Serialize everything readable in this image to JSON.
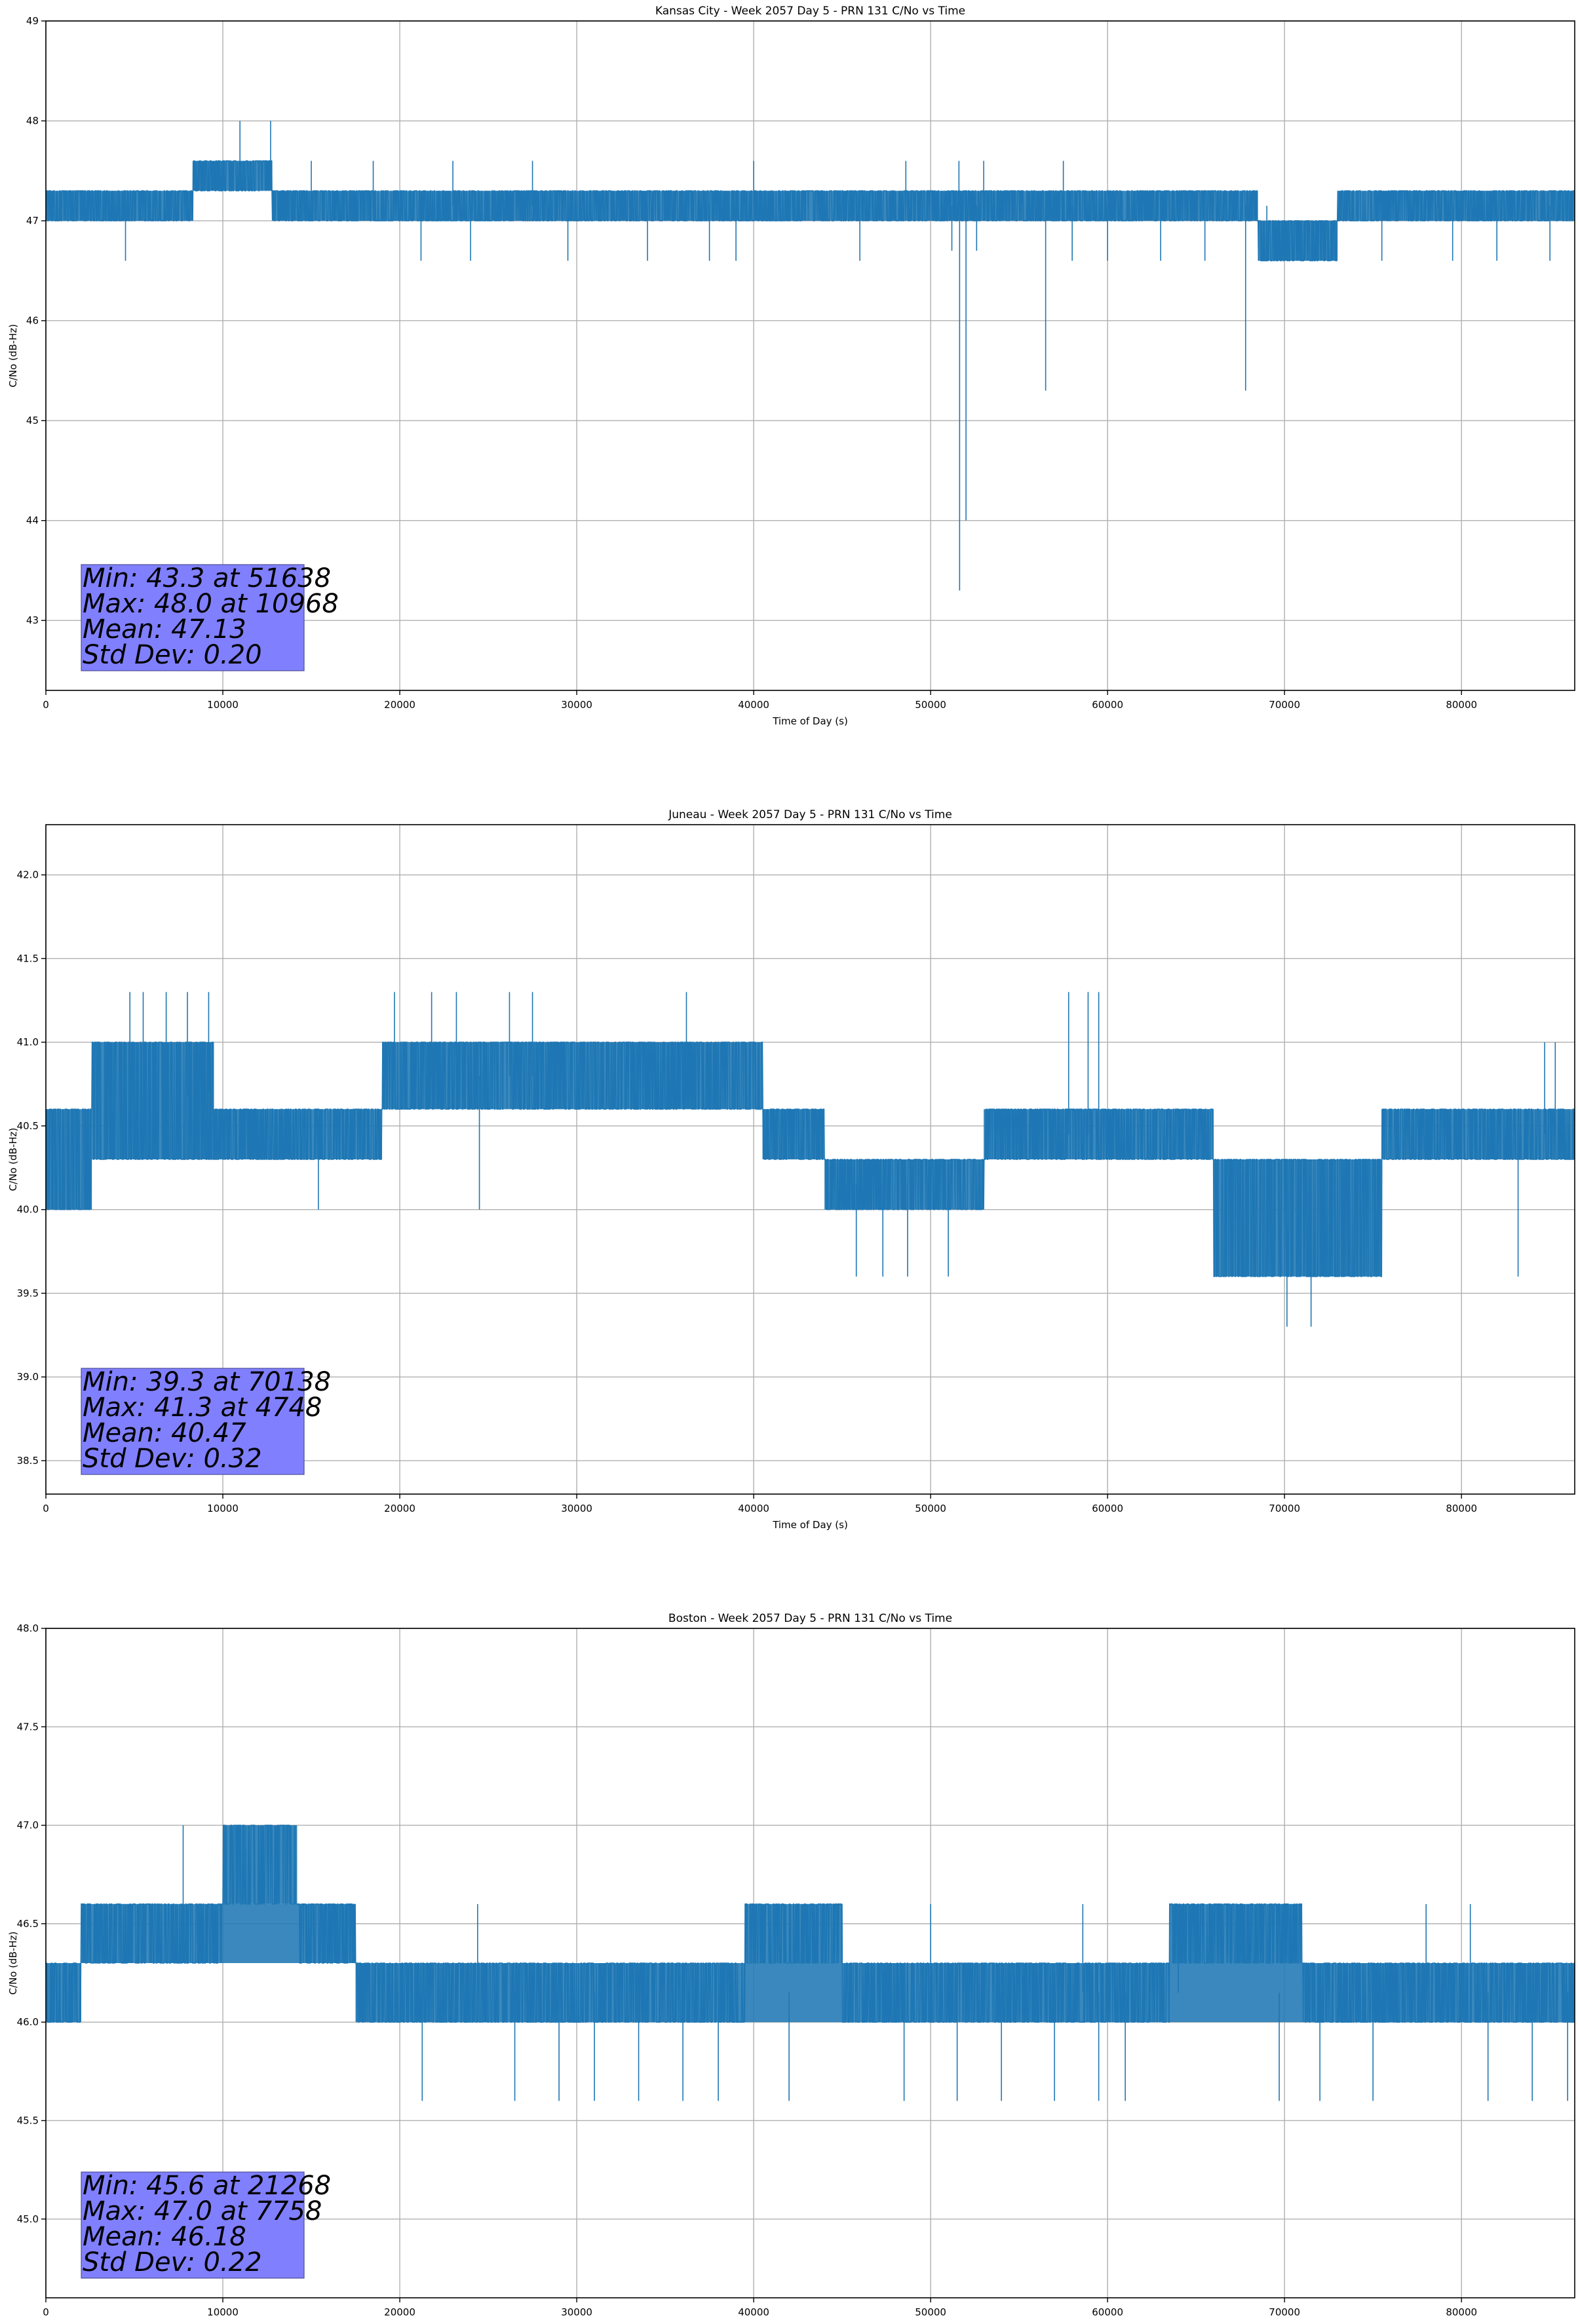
{
  "chart_data": [
    {
      "type": "line",
      "title": "Kansas City - Week 2057 Day 5 - PRN 131 C/No vs Time",
      "xlabel": "Time of Day (s)",
      "ylabel": "C/No (dB-Hz)",
      "xlim": [
        0,
        86400
      ],
      "ylim": [
        42.3,
        49.0
      ],
      "xticks": [
        0,
        10000,
        20000,
        30000,
        40000,
        50000,
        60000,
        70000,
        80000
      ],
      "yticks": [
        43,
        44,
        45,
        46,
        47,
        48,
        49
      ],
      "ytick_labels": [
        "43",
        "44",
        "45",
        "46",
        "47",
        "48",
        "49"
      ],
      "grid": true,
      "series": [
        {
          "color": "#1f77b4",
          "step": 0.3,
          "base": [
            [
              0,
              47.15
            ],
            [
              8300,
              47.15
            ],
            [
              8500,
              47.45
            ],
            [
              12800,
              47.45
            ],
            [
              13000,
              47.15
            ],
            [
              86400,
              47.15
            ]
          ],
          "dense_bands": [
            {
              "x0": 0,
              "x1": 8300,
              "lo": 47.0,
              "hi": 47.3
            },
            {
              "x0": 8300,
              "x1": 12800,
              "lo": 47.3,
              "hi": 47.6
            },
            {
              "x0": 12800,
              "x1": 68500,
              "lo": 47.0,
              "hi": 47.3
            },
            {
              "x0": 68500,
              "x1": 73000,
              "lo": 46.6,
              "hi": 47.0
            },
            {
              "x0": 73000,
              "x1": 86400,
              "lo": 47.0,
              "hi": 47.3
            }
          ],
          "spikes": [
            [
              4500,
              46.6
            ],
            [
              10968,
              48.0
            ],
            [
              12700,
              48.0
            ],
            [
              21200,
              46.6
            ],
            [
              24000,
              46.6
            ],
            [
              29500,
              46.6
            ],
            [
              34000,
              46.6
            ],
            [
              37500,
              46.6
            ],
            [
              39000,
              46.6
            ],
            [
              46000,
              46.6
            ],
            [
              51200,
              46.7
            ],
            [
              51638,
              43.3
            ],
            [
              52000,
              44.0
            ],
            [
              52600,
              46.7
            ],
            [
              56500,
              45.3
            ],
            [
              58000,
              46.6
            ],
            [
              60000,
              46.6
            ],
            [
              63000,
              46.6
            ],
            [
              65500,
              46.6
            ],
            [
              67800,
              45.3
            ],
            [
              69000,
              46.6
            ],
            [
              75500,
              46.6
            ],
            [
              79500,
              46.6
            ],
            [
              82000,
              46.6
            ],
            [
              85000,
              46.6
            ],
            [
              15000,
              47.6
            ],
            [
              18500,
              47.6
            ],
            [
              23000,
              47.6
            ],
            [
              27500,
              47.6
            ],
            [
              40000,
              47.6
            ],
            [
              48600,
              47.6
            ],
            [
              51600,
              47.6
            ],
            [
              53000,
              47.6
            ],
            [
              57500,
              47.6
            ]
          ]
        }
      ],
      "stats": [
        "Min: 43.3 at 51638",
        "Max: 48.0 at 10968",
        "Mean: 47.13",
        "Std Dev: 0.20"
      ]
    },
    {
      "type": "line",
      "title": "Juneau - Week 2057 Day 5 - PRN 131 C/No vs Time",
      "xlabel": "Time of Day (s)",
      "ylabel": "C/No (dB-Hz)",
      "xlim": [
        0,
        86400
      ],
      "ylim": [
        38.3,
        42.3
      ],
      "xticks": [
        0,
        10000,
        20000,
        30000,
        40000,
        50000,
        60000,
        70000,
        80000
      ],
      "yticks": [
        38.5,
        39.0,
        39.5,
        40.0,
        40.5,
        41.0,
        41.5,
        42.0
      ],
      "ytick_labels": [
        "38.5",
        "39.0",
        "39.5",
        "40.0",
        "40.5",
        "41.0",
        "41.5",
        "42.0"
      ],
      "grid": true,
      "series": [
        {
          "color": "#1f77b4",
          "step": 0.3,
          "base": [
            [
              0,
              40.3
            ],
            [
              2600,
              40.3
            ],
            [
              3000,
              40.6
            ],
            [
              9500,
              40.7
            ],
            [
              17500,
              40.5
            ],
            [
              19500,
              40.8
            ],
            [
              35000,
              40.8
            ],
            [
              40500,
              40.7
            ],
            [
              41000,
              40.45
            ],
            [
              44000,
              40.4
            ],
            [
              44500,
              40.15
            ],
            [
              53000,
              40.15
            ],
            [
              53500,
              40.45
            ],
            [
              64000,
              40.45
            ],
            [
              66000,
              40.15
            ],
            [
              70000,
              39.9
            ],
            [
              72000,
              40.0
            ],
            [
              75500,
              40.15
            ],
            [
              76500,
              40.45
            ],
            [
              86400,
              40.45
            ]
          ],
          "dense_bands": [
            {
              "x0": 0,
              "x1": 2600,
              "lo": 40.0,
              "hi": 40.6
            },
            {
              "x0": 2600,
              "x1": 9500,
              "lo": 40.3,
              "hi": 41.0
            },
            {
              "x0": 9500,
              "x1": 19000,
              "lo": 40.3,
              "hi": 40.6
            },
            {
              "x0": 19000,
              "x1": 40500,
              "lo": 40.6,
              "hi": 41.0
            },
            {
              "x0": 40500,
              "x1": 44000,
              "lo": 40.3,
              "hi": 40.6
            },
            {
              "x0": 44000,
              "x1": 53000,
              "lo": 40.0,
              "hi": 40.3
            },
            {
              "x0": 53000,
              "x1": 66000,
              "lo": 40.3,
              "hi": 40.6
            },
            {
              "x0": 66000,
              "x1": 75500,
              "lo": 39.6,
              "hi": 40.3
            },
            {
              "x0": 75500,
              "x1": 86400,
              "lo": 40.3,
              "hi": 40.6
            }
          ],
          "spikes": [
            [
              4748,
              41.3
            ],
            [
              5500,
              41.3
            ],
            [
              6800,
              41.3
            ],
            [
              8000,
              41.3
            ],
            [
              9200,
              41.3
            ],
            [
              15400,
              40.0
            ],
            [
              19700,
              41.3
            ],
            [
              21800,
              41.3
            ],
            [
              23200,
              41.3
            ],
            [
              24500,
              40.0
            ],
            [
              26200,
              41.3
            ],
            [
              27500,
              41.3
            ],
            [
              36200,
              41.3
            ],
            [
              45800,
              39.6
            ],
            [
              47300,
              39.6
            ],
            [
              48700,
              39.6
            ],
            [
              51000,
              39.6
            ],
            [
              57800,
              41.3
            ],
            [
              58900,
              41.3
            ],
            [
              59500,
              41.3
            ],
            [
              69800,
              39.6
            ],
            [
              70138,
              39.3
            ],
            [
              71500,
              39.3
            ],
            [
              72000,
              39.6
            ],
            [
              74500,
              39.6
            ],
            [
              83200,
              39.6
            ],
            [
              84700,
              41.0
            ],
            [
              85300,
              41.0
            ]
          ]
        }
      ],
      "stats": [
        "Min: 39.3 at 70138",
        "Max: 41.3 at 4748",
        "Mean: 40.47",
        "Std Dev: 0.32"
      ]
    },
    {
      "type": "line",
      "title": "Boston - Week 2057 Day 5 - PRN 131 C/No vs Time",
      "xlabel": "Time of Day (s)",
      "ylabel": "C/No (dB-Hz)",
      "xlim": [
        0,
        86400
      ],
      "ylim": [
        44.6,
        48.0
      ],
      "xticks": [
        0,
        10000,
        20000,
        30000,
        40000,
        50000,
        60000,
        70000,
        80000
      ],
      "yticks": [
        45.0,
        45.5,
        46.0,
        46.5,
        47.0,
        47.5,
        48.0
      ],
      "ytick_labels": [
        "45.0",
        "45.5",
        "46.0",
        "46.5",
        "47.0",
        "47.5",
        "48.0"
      ],
      "grid": true,
      "series": [
        {
          "color": "#1f77b4",
          "step": 0.3,
          "base": [
            [
              0,
              46.15
            ],
            [
              2000,
              46.15
            ],
            [
              2500,
              46.45
            ],
            [
              17000,
              46.45
            ],
            [
              17500,
              46.15
            ],
            [
              86400,
              46.15
            ]
          ],
          "dense_bands": [
            {
              "x0": 0,
              "x1": 2000,
              "lo": 46.0,
              "hi": 46.3
            },
            {
              "x0": 2000,
              "x1": 17500,
              "lo": 46.3,
              "hi": 46.6
            },
            {
              "x0": 10000,
              "x1": 14200,
              "lo": 46.6,
              "hi": 47.0
            },
            {
              "x0": 17500,
              "x1": 86400,
              "lo": 46.0,
              "hi": 46.3
            },
            {
              "x0": 39500,
              "x1": 45000,
              "lo": 46.3,
              "hi": 46.6
            },
            {
              "x0": 63500,
              "x1": 71000,
              "lo": 46.3,
              "hi": 46.6
            }
          ],
          "spikes": [
            [
              7758,
              47.0
            ],
            [
              21268,
              45.6
            ],
            [
              24400,
              46.6
            ],
            [
              26500,
              45.6
            ],
            [
              29000,
              45.6
            ],
            [
              31000,
              45.6
            ],
            [
              33500,
              45.6
            ],
            [
              36000,
              45.6
            ],
            [
              38000,
              45.6
            ],
            [
              42000,
              45.6
            ],
            [
              48500,
              45.6
            ],
            [
              50000,
              46.6
            ],
            [
              51500,
              45.6
            ],
            [
              54000,
              45.6
            ],
            [
              57000,
              45.6
            ],
            [
              58600,
              46.6
            ],
            [
              59500,
              45.6
            ],
            [
              61000,
              45.6
            ],
            [
              64000,
              46.6
            ],
            [
              69700,
              45.6
            ],
            [
              72000,
              45.6
            ],
            [
              75000,
              45.6
            ],
            [
              78000,
              46.6
            ],
            [
              80500,
              46.6
            ],
            [
              81500,
              45.6
            ],
            [
              84000,
              45.6
            ],
            [
              86000,
              45.6
            ]
          ]
        }
      ],
      "stats": [
        "Min: 45.6 at 21268",
        "Max: 47.0 at 7758",
        "Mean: 46.18",
        "Std Dev: 0.22"
      ]
    }
  ]
}
